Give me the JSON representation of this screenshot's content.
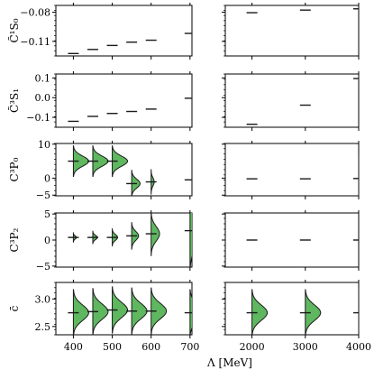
{
  "chart_data": {
    "type": "violin-grid",
    "xlabel": "Λ [MeV]",
    "columns": [
      {
        "xlim": [
          355,
          705
        ],
        "ticks": [
          400,
          500,
          600,
          700
        ],
        "tick_labels": [
          "400",
          "500",
          "600",
          "700"
        ]
      },
      {
        "xlim": [
          1500,
          4000
        ],
        "ticks": [
          2000,
          3000,
          4000
        ],
        "tick_labels": [
          "2000",
          "3000",
          "4000"
        ]
      }
    ],
    "colors": {
      "fill": "#5fb760",
      "stroke": "#1a1a1a",
      "frame": "#000000"
    },
    "rows": [
      {
        "ylabel": "C̃¹S₀",
        "ylim": [
          -0.125,
          -0.073
        ],
        "yticks": [
          -0.08,
          -0.11
        ],
        "ytick_labels": [
          "−0.08",
          "−0.11"
        ],
        "panels": [
          [
            {
              "x": 400,
              "y": -0.1225,
              "w": 0.0,
              "sd": 0.0005
            },
            {
              "x": 450,
              "y": -0.1183,
              "w": 0.0,
              "sd": 0.0005
            },
            {
              "x": 500,
              "y": -0.1142,
              "w": 0.0,
              "sd": 0.0005
            },
            {
              "x": 550,
              "y": -0.1108,
              "w": 0.0,
              "sd": 0.0005
            },
            {
              "x": 600,
              "y": -0.1088,
              "w": 0.0,
              "sd": 0.0005
            },
            {
              "x": 700,
              "y": -0.1018,
              "w": 0.0,
              "sd": 0.0005
            }
          ],
          [
            {
              "x": 2000,
              "y": -0.0805,
              "w": 0.0,
              "sd": 0.0005
            },
            {
              "x": 3000,
              "y": -0.0778,
              "w": 0.0,
              "sd": 0.0005
            },
            {
              "x": 4000,
              "y": -0.0765,
              "w": 0.0,
              "sd": 0.0005
            }
          ]
        ]
      },
      {
        "ylabel": "C̃³S₁",
        "ylim": [
          -0.15,
          0.12
        ],
        "yticks": [
          0.1,
          0.0,
          -0.1
        ],
        "ytick_labels": [
          "0.1",
          "0.0",
          "−0.1"
        ],
        "panels": [
          [
            {
              "x": 400,
              "y": -0.12,
              "w": 0.0,
              "sd": 0.003
            },
            {
              "x": 450,
              "y": -0.095,
              "w": 0.0,
              "sd": 0.003
            },
            {
              "x": 500,
              "y": -0.08,
              "w": 0.0,
              "sd": 0.003
            },
            {
              "x": 550,
              "y": -0.07,
              "w": 0.0,
              "sd": 0.003
            },
            {
              "x": 600,
              "y": -0.058,
              "w": 0.0,
              "sd": 0.003
            },
            {
              "x": 700,
              "y": -0.003,
              "w": 0.0,
              "sd": 0.003
            }
          ],
          [
            {
              "x": 2000,
              "y": -0.135,
              "w": 0.0,
              "sd": 0.003
            },
            {
              "x": 3000,
              "y": -0.038,
              "w": 0.0,
              "sd": 0.003
            },
            {
              "x": 4000,
              "y": 0.097,
              "w": 0.3,
              "sd": 0.003
            }
          ]
        ]
      },
      {
        "ylabel": "C³P₀",
        "ylim": [
          -5.2,
          10.2
        ],
        "yticks": [
          10,
          0,
          -5
        ],
        "ytick_labels": [
          "10",
          "0",
          "−5"
        ],
        "panels": [
          [
            {
              "x": 400,
              "y": 5.0,
              "w": 1.0,
              "sd": 1.5
            },
            {
              "x": 450,
              "y": 5.0,
              "w": 1.0,
              "sd": 1.5
            },
            {
              "x": 500,
              "y": 5.0,
              "w": 1.0,
              "sd": 1.5
            },
            {
              "x": 550,
              "y": -1.6,
              "w": 0.55,
              "sd": 1.3
            },
            {
              "x": 600,
              "y": -1.1,
              "w": 0.2,
              "sd": 1.2
            },
            {
              "x": 700,
              "y": -0.5,
              "w": 0.0,
              "sd": 0.3
            }
          ],
          [
            {
              "x": 2000,
              "y": -0.2,
              "w": 0.0,
              "sd": 0.3
            },
            {
              "x": 3000,
              "y": -0.2,
              "w": 0.0,
              "sd": 0.3
            },
            {
              "x": 4000,
              "y": -0.1,
              "w": 1.0,
              "sd": 2.2
            }
          ]
        ]
      },
      {
        "ylabel": "C³P₂",
        "ylim": [
          -5.2,
          5.2
        ],
        "yticks": [
          5,
          0,
          -5
        ],
        "ytick_labels": [
          "5",
          "0",
          "−5"
        ],
        "panels": [
          [
            {
              "x": 400,
              "y": 0.5,
              "w": 0.2,
              "sd": 0.3
            },
            {
              "x": 450,
              "y": 0.5,
              "w": 0.3,
              "sd": 0.4
            },
            {
              "x": 500,
              "y": 0.5,
              "w": 0.35,
              "sd": 0.55
            },
            {
              "x": 550,
              "y": 0.8,
              "w": 0.45,
              "sd": 0.85
            },
            {
              "x": 600,
              "y": 1.2,
              "w": 0.55,
              "sd": 1.4
            },
            {
              "x": 700,
              "y": 1.8,
              "w": 1.0,
              "sd": 2.5
            }
          ],
          [
            {
              "x": 2000,
              "y": 0.0,
              "w": 0.0,
              "sd": 0.3
            },
            {
              "x": 3000,
              "y": 0.0,
              "w": 0.0,
              "sd": 0.3
            },
            {
              "x": 4000,
              "y": 0.0,
              "w": 0.0,
              "sd": 0.3
            }
          ]
        ]
      },
      {
        "ylabel": "c̄",
        "ylim": [
          2.35,
          3.3
        ],
        "yticks": [
          3.0,
          2.5
        ],
        "ytick_labels": [
          "3.0",
          "2.5"
        ],
        "panels": [
          [
            {
              "x": 400,
              "y": 2.75,
              "w": 1.0,
              "sd": 0.14
            },
            {
              "x": 450,
              "y": 2.77,
              "w": 1.0,
              "sd": 0.14
            },
            {
              "x": 500,
              "y": 2.8,
              "w": 1.0,
              "sd": 0.14
            },
            {
              "x": 550,
              "y": 2.78,
              "w": 1.0,
              "sd": 0.14
            },
            {
              "x": 600,
              "y": 2.78,
              "w": 1.0,
              "sd": 0.14
            },
            {
              "x": 700,
              "y": 2.75,
              "w": 1.0,
              "sd": 0.14
            }
          ],
          [
            {
              "x": 2000,
              "y": 2.75,
              "w": 1.0,
              "sd": 0.14
            },
            {
              "x": 3000,
              "y": 2.75,
              "w": 1.0,
              "sd": 0.14
            },
            {
              "x": 4000,
              "y": 2.75,
              "w": 1.0,
              "sd": 0.14
            }
          ]
        ]
      }
    ]
  }
}
